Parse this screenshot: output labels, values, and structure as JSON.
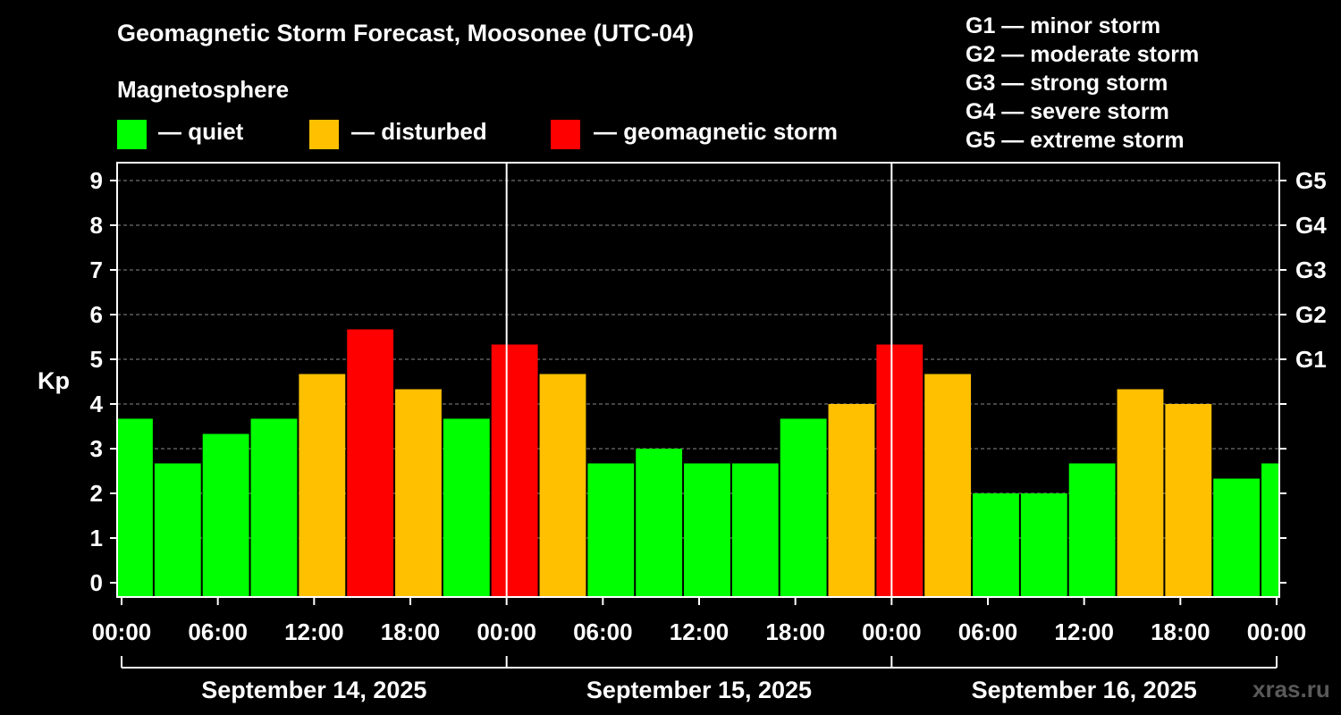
{
  "chart_data": {
    "type": "bar",
    "title": "Geomagnetic Storm Forecast, Moosonee (UTC-04)",
    "subtitle": "Magnetosphere",
    "ylabel": "Kp",
    "ylim": [
      0,
      9
    ],
    "yticks": [
      "0",
      "1",
      "2",
      "3",
      "4",
      "5",
      "6",
      "7",
      "8",
      "9"
    ],
    "right_ticks": [
      {
        "kp": 5,
        "label": "G1"
      },
      {
        "kp": 6,
        "label": "G2"
      },
      {
        "kp": 7,
        "label": "G3"
      },
      {
        "kp": 8,
        "label": "G4"
      },
      {
        "kp": 9,
        "label": "G5"
      }
    ],
    "time_range_hours": [
      -1,
      72
    ],
    "x_ticks": [
      {
        "hour": 0,
        "label": "00:00"
      },
      {
        "hour": 6,
        "label": "06:00"
      },
      {
        "hour": 12,
        "label": "12:00"
      },
      {
        "hour": 18,
        "label": "18:00"
      },
      {
        "hour": 24,
        "label": "00:00"
      },
      {
        "hour": 30,
        "label": "06:00"
      },
      {
        "hour": 36,
        "label": "12:00"
      },
      {
        "hour": 42,
        "label": "18:00"
      },
      {
        "hour": 48,
        "label": "00:00"
      },
      {
        "hour": 54,
        "label": "06:00"
      },
      {
        "hour": 60,
        "label": "12:00"
      },
      {
        "hour": 66,
        "label": "18:00"
      },
      {
        "hour": 72,
        "label": "00:00"
      }
    ],
    "days": [
      {
        "label": "September 14, 2025",
        "start_hour": 0,
        "end_hour": 24
      },
      {
        "label": "September 15, 2025",
        "start_hour": 24,
        "end_hour": 48
      },
      {
        "label": "September 16, 2025",
        "start_hour": 48,
        "end_hour": 72
      }
    ],
    "day_dividers_hours": [
      24,
      48
    ],
    "bars": [
      {
        "start": -1,
        "end": 2,
        "kp": 3.67,
        "level": "quiet"
      },
      {
        "start": 2,
        "end": 5,
        "kp": 2.67,
        "level": "quiet"
      },
      {
        "start": 5,
        "end": 8,
        "kp": 3.33,
        "level": "quiet"
      },
      {
        "start": 8,
        "end": 11,
        "kp": 3.67,
        "level": "quiet"
      },
      {
        "start": 11,
        "end": 14,
        "kp": 4.67,
        "level": "disturbed"
      },
      {
        "start": 14,
        "end": 17,
        "kp": 5.67,
        "level": "storm"
      },
      {
        "start": 17,
        "end": 20,
        "kp": 4.33,
        "level": "disturbed"
      },
      {
        "start": 20,
        "end": 23,
        "kp": 3.67,
        "level": "quiet"
      },
      {
        "start": 23,
        "end": 26,
        "kp": 5.33,
        "level": "storm"
      },
      {
        "start": 26,
        "end": 29,
        "kp": 4.67,
        "level": "disturbed"
      },
      {
        "start": 29,
        "end": 32,
        "kp": 2.67,
        "level": "quiet"
      },
      {
        "start": 32,
        "end": 35,
        "kp": 3.0,
        "level": "quiet"
      },
      {
        "start": 35,
        "end": 38,
        "kp": 2.67,
        "level": "quiet"
      },
      {
        "start": 38,
        "end": 41,
        "kp": 2.67,
        "level": "quiet"
      },
      {
        "start": 41,
        "end": 44,
        "kp": 3.67,
        "level": "quiet"
      },
      {
        "start": 44,
        "end": 47,
        "kp": 4.0,
        "level": "disturbed"
      },
      {
        "start": 47,
        "end": 50,
        "kp": 5.33,
        "level": "storm"
      },
      {
        "start": 50,
        "end": 53,
        "kp": 4.67,
        "level": "disturbed"
      },
      {
        "start": 53,
        "end": 56,
        "kp": 2.0,
        "level": "quiet"
      },
      {
        "start": 56,
        "end": 59,
        "kp": 2.0,
        "level": "quiet"
      },
      {
        "start": 59,
        "end": 62,
        "kp": 2.67,
        "level": "quiet"
      },
      {
        "start": 62,
        "end": 65,
        "kp": 4.33,
        "level": "disturbed"
      },
      {
        "start": 65,
        "end": 68,
        "kp": 4.0,
        "level": "disturbed"
      },
      {
        "start": 68,
        "end": 71,
        "kp": 2.33,
        "level": "quiet"
      },
      {
        "start": 71,
        "end": 74,
        "kp": 2.67,
        "level": "quiet"
      }
    ],
    "legend": [
      {
        "level": "quiet",
        "label": "— quiet",
        "color": "#00ff00"
      },
      {
        "level": "disturbed",
        "label": "— disturbed",
        "color": "#ffc000"
      },
      {
        "level": "storm",
        "label": "— geomagnetic storm",
        "color": "#ff0000"
      }
    ],
    "storm_scale": [
      "G1 — minor storm",
      "G2 — moderate storm",
      "G3 — strong storm",
      "G4 — severe storm",
      "G5 — extreme storm"
    ],
    "grid": true
  },
  "watermark": "xras.ru"
}
